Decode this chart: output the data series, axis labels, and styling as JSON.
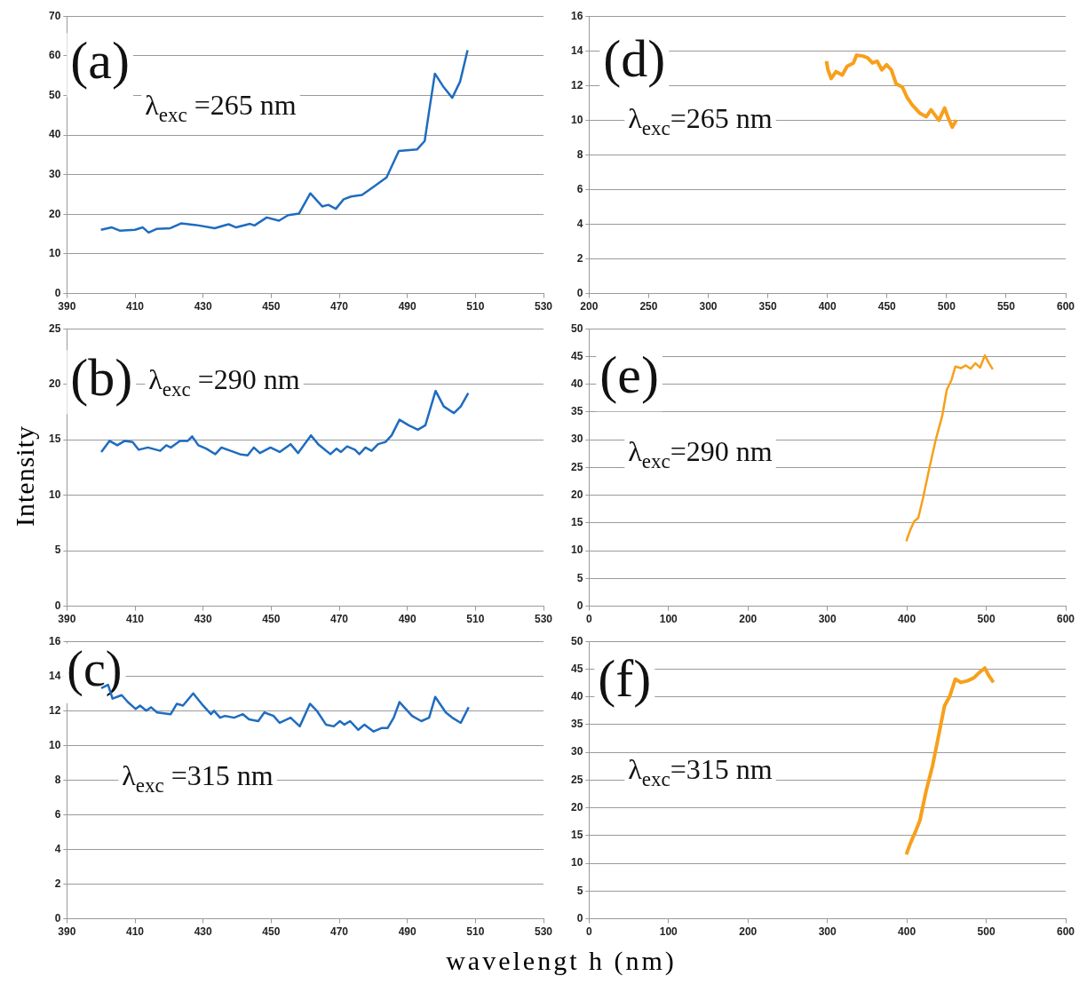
{
  "chart_data": [
    {
      "type": "line",
      "annotations": [
        "(a)",
        "λ$_{exc}$ =265 nm"
      ],
      "color": "#1f6cc0",
      "xlim": [
        390,
        530
      ],
      "xticks": [
        390,
        410,
        430,
        450,
        470,
        490,
        510,
        530
      ],
      "ylim": [
        0,
        70
      ],
      "yticks": [
        0,
        10,
        20,
        30,
        40,
        50,
        60,
        70
      ],
      "grid": "y",
      "x": [
        400,
        403.2,
        405.5,
        410,
        412.3,
        414,
        416.3,
        420.4,
        423.5,
        428,
        433.4,
        437.5,
        439.7,
        443.8,
        445.1,
        448.7,
        452.3,
        455,
        458.2,
        461.5,
        465,
        466.8,
        469,
        471.3,
        473.5,
        476.7,
        480.3,
        483.9,
        487.5,
        492.9,
        495.1,
        496.5,
        498.1,
        500.5,
        503.2,
        505.5,
        507.7
      ],
      "values": [
        16.1,
        16.7,
        15.9,
        16.1,
        16.7,
        15.4,
        16.3,
        16.5,
        17.7,
        17.3,
        16.5,
        17.5,
        16.7,
        17.6,
        17.2,
        19.2,
        18.4,
        19.8,
        20.2,
        25.3,
        22,
        22.4,
        21.4,
        23.8,
        24.5,
        24.9,
        27.1,
        29.3,
        36,
        36.4,
        38.5,
        46.6,
        55.5,
        52.3,
        49.4,
        53.5,
        61.4
      ]
    },
    {
      "type": "line",
      "annotations": [
        "(d)",
        "λ$_{exc}$=265 nm"
      ],
      "color": "#f7a01c",
      "xlim": [
        200,
        600
      ],
      "xticks": [
        200,
        250,
        300,
        350,
        400,
        450,
        500,
        550,
        600
      ],
      "ylim": [
        0,
        16
      ],
      "yticks": [
        0,
        2,
        4,
        6,
        8,
        10,
        12,
        14,
        16
      ],
      "grid": "y",
      "x": [
        399.2,
        400.5,
        403.2,
        407.2,
        412.5,
        416.5,
        421.8,
        424.5,
        429.8,
        433.8,
        437.8,
        441.8,
        445.7,
        449.7,
        453.7,
        457.7,
        463,
        467,
        471,
        477.7,
        483,
        487,
        493.6,
        498.4,
        501.6,
        504.8,
        508.2
      ],
      "values": [
        13.4,
        12.9,
        12.4,
        12.8,
        12.6,
        13.1,
        13.3,
        13.75,
        13.7,
        13.6,
        13.3,
        13.4,
        12.9,
        13.2,
        12.9,
        12.1,
        11.9,
        11.3,
        10.9,
        10.4,
        10.2,
        10.6,
        10.0,
        10.7,
        10.1,
        9.6,
        10.0
      ]
    },
    {
      "type": "line",
      "annotations": [
        "(b)",
        "λ$_{exc}$ =290 nm"
      ],
      "ylabel": "Intensity",
      "color": "#1f6cc0",
      "xlim": [
        390,
        530
      ],
      "xticks": [
        390,
        410,
        430,
        450,
        470,
        490,
        510,
        530
      ],
      "ylim": [
        0,
        25
      ],
      "yticks": [
        0,
        5,
        10,
        15,
        20,
        25
      ],
      "grid": "y",
      "x": [
        400.1,
        402.5,
        404.8,
        407,
        409.3,
        411.1,
        413.8,
        417.4,
        419.2,
        420.5,
        423.2,
        425.5,
        426.8,
        428.6,
        430.9,
        433.6,
        435.4,
        438.1,
        440.8,
        443.1,
        444.9,
        446.7,
        449.8,
        452.5,
        455.7,
        457.9,
        461.7,
        463.8,
        467.4,
        469.2,
        470.5,
        472.3,
        474.6,
        475.9,
        477.7,
        479.5,
        481.4,
        483.6,
        485.4,
        487.7,
        490.4,
        493.1,
        495.3,
        498.3,
        500.7,
        503.7,
        505.7,
        507.9
      ],
      "values": [
        13.9,
        14.9,
        14.5,
        14.9,
        14.8,
        14.1,
        14.3,
        14.0,
        14.5,
        14.3,
        14.9,
        14.9,
        15.3,
        14.5,
        14.2,
        13.7,
        14.3,
        14.0,
        13.7,
        13.6,
        14.3,
        13.8,
        14.3,
        13.9,
        14.6,
        13.8,
        15.4,
        14.6,
        13.7,
        14.2,
        13.9,
        14.4,
        14.1,
        13.7,
        14.3,
        14.0,
        14.6,
        14.8,
        15.4,
        16.8,
        16.3,
        15.9,
        16.3,
        19.4,
        18.0,
        17.4,
        18.0,
        19.2
      ]
    },
    {
      "type": "line",
      "annotations": [
        "(e)",
        "λ$_{exc}$=290 nm"
      ],
      "color": "#f7a01c",
      "xlim": [
        0,
        600
      ],
      "xticks": [
        0,
        100,
        200,
        300,
        400,
        500,
        600
      ],
      "ylim": [
        0,
        50
      ],
      "yticks": [
        0,
        5,
        10,
        15,
        20,
        25,
        30,
        35,
        40,
        45,
        50
      ],
      "grid": "y",
      "x": [
        399.3,
        404.5,
        409.3,
        414.4,
        420.4,
        428.4,
        436.4,
        444.4,
        450.3,
        456.3,
        461.1,
        468.3,
        474.3,
        480.3,
        486.2,
        492.2,
        498.2,
        503.4,
        508.2
      ],
      "values": [
        11.7,
        13.8,
        15.3,
        15.9,
        19.5,
        24.9,
        30.0,
        34.2,
        39.0,
        40.8,
        43.2,
        42.9,
        43.4,
        42.8,
        43.8,
        43.0,
        45.2,
        43.8,
        42.7
      ]
    },
    {
      "type": "line",
      "annotations": [
        "(c)",
        "λ$_{exc}$ =315 nm"
      ],
      "xlabel": "wavelengt h (nm)",
      "color": "#1f6cc0",
      "xlim": [
        390,
        530
      ],
      "xticks": [
        390,
        410,
        430,
        450,
        470,
        490,
        510,
        530
      ],
      "ylim": [
        0,
        16
      ],
      "yticks": [
        0,
        2,
        4,
        6,
        8,
        10,
        12,
        14,
        16
      ],
      "grid": "y",
      "x": [
        400.1,
        402.1,
        403.4,
        406.1,
        407.9,
        410.2,
        411.5,
        413.3,
        414.7,
        416.5,
        420.5,
        422.3,
        424.1,
        427.1,
        430,
        432.3,
        433.2,
        435,
        436.4,
        439.1,
        441.7,
        443.5,
        446.2,
        448,
        450.7,
        452.5,
        455.7,
        458.4,
        461.4,
        463.4,
        466.1,
        468.4,
        470.2,
        471.5,
        473.2,
        475.6,
        477.4,
        480.1,
        482.4,
        484.2,
        486,
        487.7,
        491.4,
        494.1,
        496.4,
        498.2,
        501.3,
        503.2,
        505.7,
        508
      ],
      "values": [
        13.3,
        13.5,
        12.7,
        12.9,
        12.5,
        12.1,
        12.3,
        12.0,
        12.2,
        11.9,
        11.8,
        12.4,
        12.3,
        13.0,
        12.3,
        11.8,
        12.0,
        11.6,
        11.7,
        11.6,
        11.8,
        11.5,
        11.4,
        11.9,
        11.7,
        11.3,
        11.6,
        11.1,
        12.4,
        12.0,
        11.2,
        11.1,
        11.4,
        11.2,
        11.4,
        10.9,
        11.2,
        10.8,
        11.0,
        11.0,
        11.6,
        12.5,
        11.7,
        11.4,
        11.6,
        12.8,
        11.9,
        11.6,
        11.3,
        12.2
      ]
    },
    {
      "type": "line",
      "annotations": [
        "(f)",
        "λ$_{exc}$=315 nm"
      ],
      "color": "#f7a01c",
      "xlim": [
        0,
        600
      ],
      "xticks": [
        0,
        100,
        200,
        300,
        400,
        500,
        600
      ],
      "ylim": [
        0,
        50
      ],
      "yticks": [
        0,
        5,
        10,
        15,
        20,
        25,
        30,
        35,
        40,
        45,
        50
      ],
      "grid": "y",
      "x": [
        399.3,
        404.5,
        410.5,
        416.4,
        424.4,
        432.4,
        440.4,
        447.5,
        454.3,
        461.1,
        468.3,
        476.3,
        484.2,
        491.4,
        498.2,
        503.4,
        509
      ],
      "values": [
        11.6,
        13.6,
        15.6,
        17.7,
        23.1,
        27.6,
        33.3,
        38.4,
        40.2,
        43.2,
        42.6,
        42.9,
        43.4,
        44.4,
        45.2,
        43.8,
        42.6
      ]
    }
  ]
}
